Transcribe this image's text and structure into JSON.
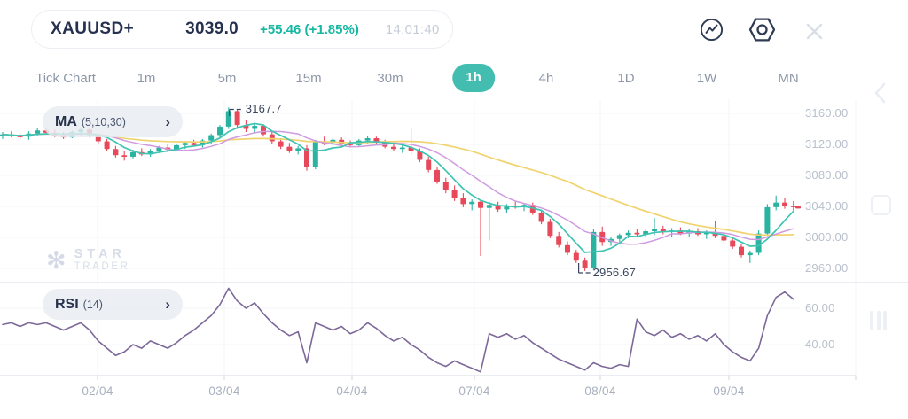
{
  "header": {
    "symbol": "XAUUSD+",
    "price": "3039.0",
    "change": "+55.46 (+1.85%)",
    "time": "14:01:40"
  },
  "tabs": {
    "items": [
      "Tick Chart",
      "1m",
      "5m",
      "15m",
      "30m",
      "1h",
      "4h",
      "1D",
      "1W",
      "MN"
    ],
    "selected": "1h"
  },
  "indicators": {
    "ma": {
      "label": "MA",
      "params": "(5,10,30)"
    },
    "rsi": {
      "label": "RSI",
      "params": "(14)"
    }
  },
  "icons": {
    "chevron_right": "›",
    "star": "✻"
  },
  "watermark": {
    "line1": "STAR",
    "line2": "TRADER"
  },
  "chart_data": {
    "type": "candlestick",
    "title": "XAUUSD+ 1h",
    "annotations": {
      "high": "3167.7",
      "low": "2956.67"
    },
    "y_axis": {
      "labels": [
        "3160.00",
        "3120.00",
        "3080.00",
        "3040.00",
        "3000.00",
        "2960.00"
      ],
      "values": [
        3160,
        3120,
        3080,
        3040,
        3000,
        2960
      ]
    },
    "rsi_axis": {
      "labels": [
        "60.00",
        "40.00"
      ],
      "values": [
        60,
        40
      ]
    },
    "x_axis": {
      "labels": [
        "02/04",
        "03/04",
        "04/04",
        "07/04",
        "08/04",
        "09/04"
      ]
    },
    "ma_periods": [
      5,
      10,
      30
    ],
    "rsi_period": 14,
    "last_price": 3039.0,
    "candles": [
      [
        3131,
        3136,
        3127,
        3133
      ],
      [
        3133,
        3137,
        3129,
        3131
      ],
      [
        3131,
        3135,
        3126,
        3130
      ],
      [
        3130,
        3137,
        3126,
        3134
      ],
      [
        3134,
        3141,
        3131,
        3138
      ],
      [
        3138,
        3142,
        3133,
        3135
      ],
      [
        3135,
        3139,
        3129,
        3131
      ],
      [
        3131,
        3136,
        3127,
        3129
      ],
      [
        3129,
        3138,
        3128,
        3136
      ],
      [
        3136,
        3141,
        3132,
        3139
      ],
      [
        3139,
        3141,
        3129,
        3132
      ],
      [
        3132,
        3135,
        3121,
        3124
      ],
      [
        3124,
        3127,
        3111,
        3114
      ],
      [
        3114,
        3118,
        3103,
        3106
      ],
      [
        3106,
        3111,
        3099,
        3104
      ],
      [
        3104,
        3113,
        3102,
        3110
      ],
      [
        3110,
        3115,
        3105,
        3107
      ],
      [
        3107,
        3114,
        3104,
        3112
      ],
      [
        3112,
        3118,
        3109,
        3116
      ],
      [
        3116,
        3120,
        3110,
        3113
      ],
      [
        3113,
        3121,
        3111,
        3119
      ],
      [
        3119,
        3124,
        3114,
        3122
      ],
      [
        3122,
        3126,
        3117,
        3119
      ],
      [
        3119,
        3127,
        3116,
        3125
      ],
      [
        3125,
        3134,
        3121,
        3132
      ],
      [
        3132,
        3145,
        3129,
        3143
      ],
      [
        3143,
        3167.7,
        3140,
        3163
      ],
      [
        3163,
        3165,
        3140,
        3145
      ],
      [
        3145,
        3151,
        3136,
        3140
      ],
      [
        3140,
        3147,
        3134,
        3144
      ],
      [
        3144,
        3146,
        3130,
        3133
      ],
      [
        3133,
        3137,
        3121,
        3124
      ],
      [
        3124,
        3128,
        3114,
        3117
      ],
      [
        3117,
        3122,
        3109,
        3112
      ],
      [
        3112,
        3118,
        3107,
        3115
      ],
      [
        3115,
        3119,
        3086,
        3091
      ],
      [
        3091,
        3126,
        3088,
        3123
      ],
      [
        3123,
        3130,
        3119,
        3122
      ],
      [
        3122,
        3128,
        3118,
        3126
      ],
      [
        3126,
        3129,
        3119,
        3121
      ],
      [
        3121,
        3125,
        3116,
        3119
      ],
      [
        3119,
        3127,
        3117,
        3125
      ],
      [
        3125,
        3131,
        3121,
        3128
      ],
      [
        3128,
        3130,
        3120,
        3123
      ],
      [
        3123,
        3126,
        3115,
        3117
      ],
      [
        3117,
        3121,
        3111,
        3114
      ],
      [
        3114,
        3119,
        3109,
        3116
      ],
      [
        3116,
        3140,
        3107,
        3111
      ],
      [
        3111,
        3115,
        3097,
        3100
      ],
      [
        3100,
        3104,
        3084,
        3087
      ],
      [
        3087,
        3091,
        3069,
        3072
      ],
      [
        3072,
        3077,
        3057,
        3061
      ],
      [
        3061,
        3067,
        3047,
        3051
      ],
      [
        3051,
        3057,
        3039,
        3043
      ],
      [
        3043,
        3049,
        3035,
        3046
      ],
      [
        3046,
        3048,
        2976,
        3038
      ],
      [
        3038,
        3046,
        2996,
        3042
      ],
      [
        3042,
        3046,
        3033,
        3036
      ],
      [
        3036,
        3043,
        3032,
        3041
      ],
      [
        3041,
        3046,
        3037,
        3039
      ],
      [
        3039,
        3044,
        3034,
        3042
      ],
      [
        3042,
        3045,
        3029,
        3032
      ],
      [
        3032,
        3035,
        3017,
        3020
      ],
      [
        3020,
        3024,
        2999,
        3002
      ],
      [
        3002,
        3007,
        2987,
        2990
      ],
      [
        2990,
        2995,
        2977,
        2980
      ],
      [
        2980,
        2984,
        2967,
        2970
      ],
      [
        2970,
        2974,
        2956.67,
        2961
      ],
      [
        2961,
        3011,
        2958,
        3007
      ],
      [
        3007,
        3014,
        2989,
        2994
      ],
      [
        2994,
        3001,
        2989,
        2998
      ],
      [
        2998,
        3005,
        2994,
        3003
      ],
      [
        3003,
        3009,
        2999,
        3006
      ],
      [
        3006,
        3011,
        3001,
        3004
      ],
      [
        3004,
        3010,
        3000,
        3008
      ],
      [
        3008,
        3025,
        3003,
        3011
      ],
      [
        3011,
        3015,
        3004,
        3007
      ],
      [
        3007,
        3012,
        3001,
        3009
      ],
      [
        3009,
        3013,
        3003,
        3005
      ],
      [
        3005,
        3011,
        3001,
        3008
      ],
      [
        3008,
        3012,
        3002,
        3004
      ],
      [
        3004,
        3009,
        2998,
        3007
      ],
      [
        3007,
        3021,
        2999,
        3002
      ],
      [
        3002,
        3006,
        2993,
        2996
      ],
      [
        2996,
        3000,
        2985,
        2988
      ],
      [
        2988,
        2992,
        2974,
        2977
      ],
      [
        2977,
        2983,
        2967,
        2980
      ],
      [
        2980,
        3009,
        2977,
        3005
      ],
      [
        3005,
        3043,
        3002,
        3039
      ],
      [
        3039,
        3054,
        3035,
        3045
      ],
      [
        3045,
        3051,
        3037,
        3041
      ],
      [
        3041,
        3047,
        3035,
        3039
      ]
    ],
    "rsi": [
      51,
      52,
      50,
      52,
      51,
      52,
      50,
      48,
      50,
      52,
      48,
      42,
      38,
      34,
      36,
      40,
      38,
      42,
      40,
      38,
      41,
      45,
      48,
      52,
      56,
      62,
      71,
      64,
      60,
      63,
      57,
      52,
      48,
      45,
      47,
      30,
      52,
      50,
      48,
      50,
      46,
      48,
      52,
      49,
      45,
      42,
      44,
      40,
      37,
      33,
      30,
      28,
      31,
      29,
      27,
      25,
      46,
      44,
      46,
      43,
      45,
      41,
      38,
      35,
      32,
      30,
      28,
      26,
      30,
      28,
      27,
      29,
      28,
      54,
      47,
      45,
      48,
      44,
      46,
      43,
      45,
      42,
      46,
      40,
      36,
      33,
      31,
      38,
      56,
      66,
      69,
      65
    ],
    "colors": {
      "up": "#2bb3a2",
      "down": "#e8495a",
      "ma5": "#3fc4b3",
      "ma10": "#cf9be0",
      "ma30": "#f0d36e",
      "rsi_line": "#7c6899",
      "grid": "#f2f4f7",
      "separator": "#e9edf2",
      "tick": "#dde2e9",
      "accent": "#44bdb1",
      "change": "#16b8a2"
    }
  }
}
